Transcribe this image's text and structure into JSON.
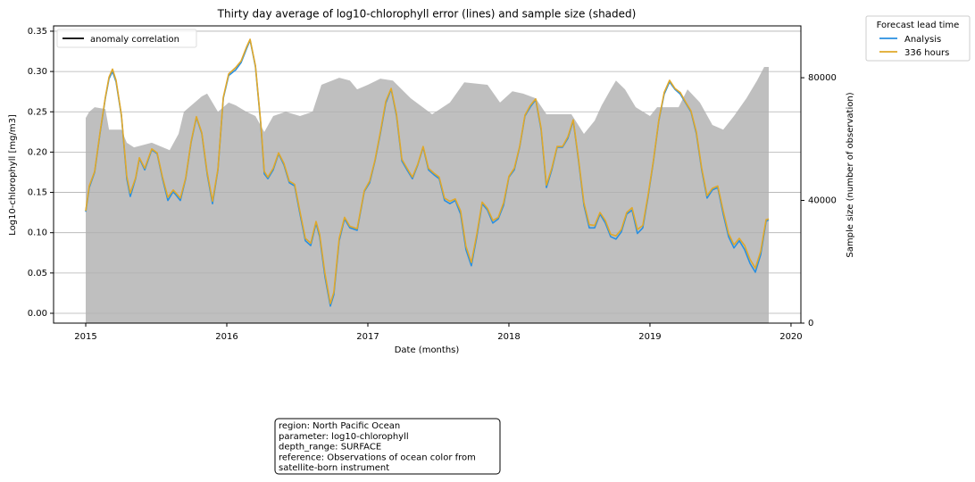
{
  "chart_data": {
    "type": "line",
    "title": "Thirty day average of log10-chlorophyll error (lines) and sample size (shaded)",
    "xlabel": "Date (months)",
    "ylabel": "Log10-chlorophyll [mg/m3]",
    "y2label": "Sample size (number of observation)",
    "xlim": [
      2014.772,
      2020.07
    ],
    "xticks": [
      2015,
      2016,
      2017,
      2018,
      2019,
      2020
    ],
    "ylim": [
      -0.0122,
      0.3566
    ],
    "yticks": [
      {
        "value": 0,
        "label": "0.00"
      },
      0.05,
      {
        "value": 0.1,
        "label": "0.10"
      },
      0.15,
      {
        "value": 0.2,
        "label": "0.20"
      },
      0.25,
      {
        "value": 0.3,
        "label": "0.30"
      },
      0.35
    ],
    "y2lim": [
      0,
      96900
    ],
    "y2ticks": [
      0,
      40000,
      80000
    ],
    "grid": true,
    "x": [
      2015,
      2015.025,
      2015.063,
      2015.101,
      2015.139,
      2015.165,
      2015.19,
      2015.215,
      2015.253,
      2015.291,
      2015.316,
      2015.354,
      2015.38,
      2015.418,
      2015.468,
      2015.506,
      2015.544,
      2015.582,
      2015.62,
      2015.671,
      2015.709,
      2015.747,
      2015.785,
      2015.823,
      2015.861,
      2015.899,
      2015.937,
      2015.975,
      2016.013,
      2016.063,
      2016.101,
      2016.139,
      2016.165,
      2016.203,
      2016.241,
      2016.266,
      2016.291,
      2016.329,
      2016.367,
      2016.405,
      2016.443,
      2016.481,
      2016.519,
      2016.557,
      2016.595,
      2016.633,
      2016.658,
      2016.696,
      2016.734,
      2016.759,
      2016.797,
      2016.835,
      2016.873,
      2016.924,
      2016.975,
      2017.013,
      2017.051,
      2017.089,
      2017.127,
      2017.165,
      2017.203,
      2017.241,
      2017.278,
      2017.316,
      2017.354,
      2017.392,
      2017.43,
      2017.468,
      2017.506,
      2017.544,
      2017.582,
      2017.62,
      2017.658,
      2017.696,
      2017.734,
      2017.772,
      2017.81,
      2017.848,
      2017.886,
      2017.924,
      2017.962,
      2018,
      2018.038,
      2018.076,
      2018.114,
      2018.152,
      2018.19,
      2018.228,
      2018.266,
      2018.304,
      2018.342,
      2018.38,
      2018.418,
      2018.456,
      2018.494,
      2018.532,
      2018.57,
      2018.608,
      2018.646,
      2018.684,
      2018.722,
      2018.759,
      2018.797,
      2018.835,
      2018.873,
      2018.911,
      2018.949,
      2018.987,
      2019.025,
      2019.063,
      2019.101,
      2019.139,
      2019.177,
      2019.215,
      2019.253,
      2019.291,
      2019.329,
      2019.367,
      2019.405,
      2019.443,
      2019.481,
      2019.519,
      2019.557,
      2019.595,
      2019.633,
      2019.671,
      2019.709,
      2019.747,
      2019.785,
      2019.823,
      2019.842
    ],
    "series": [
      {
        "name": "Analysis",
        "color": "#2a8fe0",
        "values": [
          0.126,
          0.156,
          0.175,
          0.223,
          0.267,
          0.291,
          0.3,
          0.287,
          0.245,
          0.167,
          0.145,
          0.167,
          0.192,
          0.178,
          0.203,
          0.198,
          0.167,
          0.14,
          0.151,
          0.14,
          0.167,
          0.212,
          0.243,
          0.223,
          0.173,
          0.136,
          0.178,
          0.267,
          0.295,
          0.302,
          0.311,
          0.328,
          0.339,
          0.306,
          0.234,
          0.173,
          0.167,
          0.178,
          0.198,
          0.184,
          0.162,
          0.158,
          0.123,
          0.09,
          0.084,
          0.112,
          0.095,
          0.045,
          0.009,
          0.023,
          0.09,
          0.117,
          0.106,
          0.103,
          0.151,
          0.162,
          0.189,
          0.223,
          0.261,
          0.278,
          0.245,
          0.189,
          0.178,
          0.167,
          0.184,
          0.206,
          0.178,
          0.172,
          0.167,
          0.14,
          0.136,
          0.14,
          0.123,
          0.079,
          0.059,
          0.095,
          0.136,
          0.128,
          0.112,
          0.117,
          0.134,
          0.169,
          0.178,
          0.206,
          0.245,
          0.256,
          0.265,
          0.228,
          0.156,
          0.178,
          0.206,
          0.206,
          0.217,
          0.239,
          0.189,
          0.134,
          0.106,
          0.106,
          0.123,
          0.112,
          0.095,
          0.092,
          0.101,
          0.123,
          0.128,
          0.099,
          0.106,
          0.145,
          0.189,
          0.239,
          0.272,
          0.287,
          0.278,
          0.272,
          0.261,
          0.25,
          0.223,
          0.178,
          0.143,
          0.153,
          0.156,
          0.123,
          0.095,
          0.081,
          0.09,
          0.079,
          0.062,
          0.051,
          0.073,
          0.114,
          0.116
        ]
      },
      {
        "name": "336 hours",
        "color": "#e0a82a",
        "values": [
          0.127,
          0.158,
          0.176,
          0.224,
          0.268,
          0.293,
          0.303,
          0.289,
          0.246,
          0.17,
          0.149,
          0.168,
          0.193,
          0.18,
          0.204,
          0.199,
          0.169,
          0.144,
          0.153,
          0.143,
          0.168,
          0.213,
          0.244,
          0.224,
          0.175,
          0.139,
          0.179,
          0.268,
          0.297,
          0.305,
          0.313,
          0.33,
          0.34,
          0.307,
          0.236,
          0.176,
          0.169,
          0.18,
          0.199,
          0.186,
          0.164,
          0.16,
          0.126,
          0.093,
          0.087,
          0.114,
          0.098,
          0.049,
          0.012,
          0.026,
          0.093,
          0.119,
          0.108,
          0.105,
          0.152,
          0.164,
          0.19,
          0.225,
          0.263,
          0.279,
          0.247,
          0.191,
          0.18,
          0.169,
          0.185,
          0.207,
          0.18,
          0.174,
          0.169,
          0.143,
          0.139,
          0.142,
          0.127,
          0.083,
          0.063,
          0.098,
          0.138,
          0.13,
          0.115,
          0.119,
          0.137,
          0.17,
          0.18,
          0.207,
          0.246,
          0.258,
          0.266,
          0.23,
          0.159,
          0.18,
          0.207,
          0.207,
          0.219,
          0.24,
          0.191,
          0.137,
          0.11,
          0.109,
          0.125,
          0.115,
          0.098,
          0.096,
          0.104,
          0.125,
          0.131,
          0.104,
          0.109,
          0.147,
          0.19,
          0.24,
          0.274,
          0.289,
          0.279,
          0.274,
          0.262,
          0.251,
          0.225,
          0.18,
          0.146,
          0.155,
          0.158,
          0.127,
          0.099,
          0.085,
          0.093,
          0.084,
          0.067,
          0.056,
          0.077,
          0.116,
          0.117
        ]
      }
    ],
    "shaded": {
      "axis": "y2",
      "color": "#bfbfbf",
      "x": [
        2015,
        2015.025,
        2015.063,
        2015.139,
        2015.165,
        2015.253,
        2015.291,
        2015.342,
        2015.468,
        2015.595,
        2015.658,
        2015.696,
        2015.823,
        2015.861,
        2015.937,
        2016.013,
        2016.063,
        2016.139,
        2016.203,
        2016.266,
        2016.329,
        2016.418,
        2016.519,
        2016.608,
        2016.671,
        2016.797,
        2016.873,
        2016.924,
        2017,
        2017.089,
        2017.177,
        2017.304,
        2017.456,
        2017.582,
        2017.684,
        2017.848,
        2017.937,
        2018.025,
        2018.101,
        2018.19,
        2018.266,
        2018.443,
        2018.532,
        2018.608,
        2018.658,
        2018.722,
        2018.759,
        2018.823,
        2018.899,
        2019,
        2019.051,
        2019.203,
        2019.266,
        2019.354,
        2019.443,
        2019.519,
        2019.595,
        2019.684,
        2019.759,
        2019.81,
        2019.842
      ],
      "values": [
        66900,
        68900,
        70400,
        69800,
        63100,
        63100,
        58800,
        57300,
        58800,
        56400,
        61700,
        68900,
        73900,
        74800,
        68900,
        71900,
        71000,
        68900,
        67500,
        62300,
        67500,
        68900,
        67500,
        68900,
        77700,
        80000,
        79100,
        76200,
        77700,
        79700,
        79100,
        73300,
        68100,
        71900,
        78500,
        77700,
        71900,
        75600,
        74800,
        73300,
        68100,
        68100,
        61700,
        66000,
        71000,
        76200,
        79100,
        76200,
        70400,
        67500,
        70400,
        70400,
        76200,
        71900,
        64600,
        63100,
        67500,
        73300,
        79100,
        83500,
        83500
      ]
    },
    "inner_legend": {
      "label": "anomaly correlation",
      "color": "#000000",
      "loc": "upper left"
    },
    "legend_title": "Forecast lead time",
    "legend_loc": "outside upper right",
    "annotation": [
      "region: North Pacific Ocean",
      "parameter: log10-chlorophyll",
      "depth_range: SURFACE",
      "reference: Observations of ocean color from",
      "satellite-born instrument"
    ]
  }
}
